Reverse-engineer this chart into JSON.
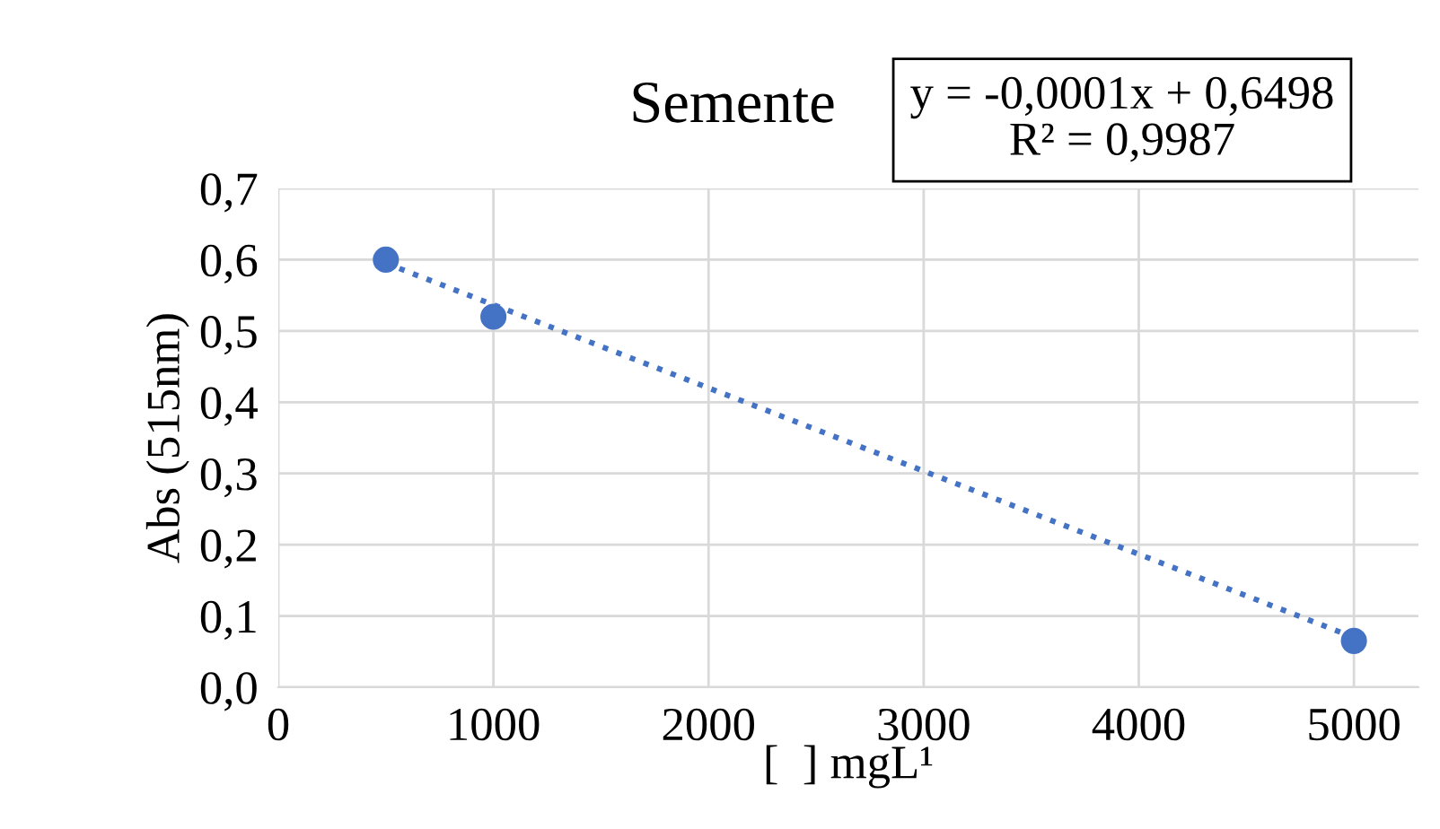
{
  "chart_data": {
    "type": "scatter",
    "title": "Semente",
    "xlabel": "[  ] mgL¹",
    "ylabel": "Abs (515nm)",
    "annotations": [
      "y = -0,0001x + 0,6498\nR² = 0,9987"
    ],
    "series": [
      {
        "color": "#4472c4",
        "x": [
          500,
          1000,
          5000
        ],
        "values": [
          0.6,
          0.52,
          0.065
        ],
        "marker": "circle"
      },
      {
        "type": "line",
        "color": "#4472c4",
        "x": [
          500,
          5000
        ],
        "values": [
          0.595,
          0.07
        ],
        "line_style": "dotted",
        "marker": "none"
      }
    ],
    "xlim": [
      0,
      5300
    ],
    "xticks": [
      0,
      1000,
      2000,
      3000,
      4000,
      5000
    ],
    "ylim": [
      0,
      0.7
    ],
    "yticks": [
      {
        "value": 0,
        "label": "0,0"
      },
      {
        "value": 0.1,
        "label": "0,1"
      },
      {
        "value": 0.2,
        "label": "0,2"
      },
      {
        "value": 0.3,
        "label": "0,3"
      },
      {
        "value": 0.4,
        "label": "0,4"
      },
      {
        "value": 0.5,
        "label": "0,5"
      },
      {
        "value": 0.6,
        "label": "0,6"
      },
      {
        "value": 0.7,
        "label": "0,7"
      }
    ],
    "grid": true,
    "legend": false
  }
}
